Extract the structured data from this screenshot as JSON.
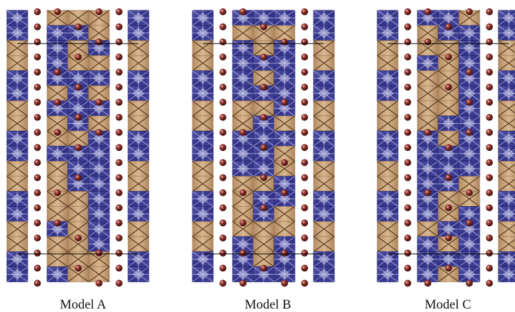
{
  "figure": {
    "panels": [
      {
        "label": "Model A"
      },
      {
        "label": "Model B"
      },
      {
        "label": "Model C"
      }
    ]
  }
}
